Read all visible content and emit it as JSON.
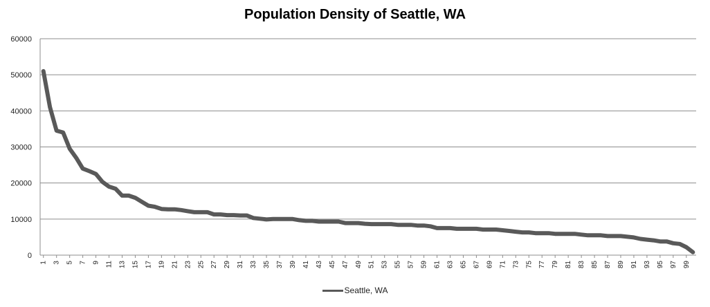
{
  "chart_data": {
    "type": "line",
    "title": "Population Density of Seattle, WA",
    "xlabel": "",
    "ylabel": "",
    "ylim": [
      0,
      60000
    ],
    "yticks": [
      0,
      10000,
      20000,
      30000,
      40000,
      50000,
      60000
    ],
    "xlim": [
      1,
      100
    ],
    "xticks": [
      1,
      3,
      5,
      7,
      9,
      11,
      13,
      15,
      17,
      19,
      21,
      23,
      25,
      27,
      29,
      31,
      33,
      35,
      37,
      39,
      41,
      43,
      45,
      47,
      49,
      51,
      53,
      55,
      57,
      59,
      61,
      63,
      65,
      67,
      69,
      71,
      73,
      75,
      77,
      79,
      81,
      83,
      85,
      87,
      89,
      91,
      93,
      95,
      97,
      99
    ],
    "grid": "horizontal",
    "legend_position": "bottom",
    "line_color": "#595959",
    "series": [
      {
        "name": "Seattle, WA",
        "x": [
          1,
          2,
          3,
          4,
          5,
          6,
          7,
          8,
          9,
          10,
          11,
          12,
          13,
          14,
          15,
          16,
          17,
          18,
          19,
          20,
          21,
          22,
          23,
          24,
          25,
          26,
          27,
          28,
          29,
          30,
          31,
          32,
          33,
          34,
          35,
          36,
          37,
          38,
          39,
          40,
          41,
          42,
          43,
          44,
          45,
          46,
          47,
          48,
          49,
          50,
          51,
          52,
          53,
          54,
          55,
          56,
          57,
          58,
          59,
          60,
          61,
          62,
          63,
          64,
          65,
          66,
          67,
          68,
          69,
          70,
          71,
          72,
          73,
          74,
          75,
          76,
          77,
          78,
          79,
          80,
          81,
          82,
          83,
          84,
          85,
          86,
          87,
          88,
          89,
          90,
          91,
          92,
          93,
          94,
          95,
          96,
          97,
          98,
          99,
          100
        ],
        "values": [
          51000,
          41000,
          34500,
          34000,
          29500,
          27000,
          24000,
          23300,
          22500,
          20300,
          19000,
          18400,
          16500,
          16500,
          15900,
          14800,
          13700,
          13400,
          12800,
          12700,
          12700,
          12500,
          12200,
          11900,
          11900,
          11900,
          11300,
          11300,
          11100,
          11100,
          11000,
          11000,
          10300,
          10100,
          9900,
          10000,
          10000,
          10000,
          10000,
          9700,
          9500,
          9500,
          9300,
          9300,
          9300,
          9300,
          8900,
          8900,
          8900,
          8700,
          8600,
          8600,
          8600,
          8600,
          8400,
          8400,
          8400,
          8200,
          8200,
          8000,
          7500,
          7500,
          7500,
          7300,
          7300,
          7300,
          7300,
          7100,
          7100,
          7100,
          6900,
          6700,
          6500,
          6300,
          6300,
          6100,
          6100,
          6100,
          5900,
          5900,
          5900,
          5900,
          5700,
          5500,
          5500,
          5500,
          5300,
          5300,
          5300,
          5100,
          4900,
          4500,
          4300,
          4100,
          3800,
          3800,
          3300,
          3100,
          2200,
          800
        ]
      }
    ]
  }
}
